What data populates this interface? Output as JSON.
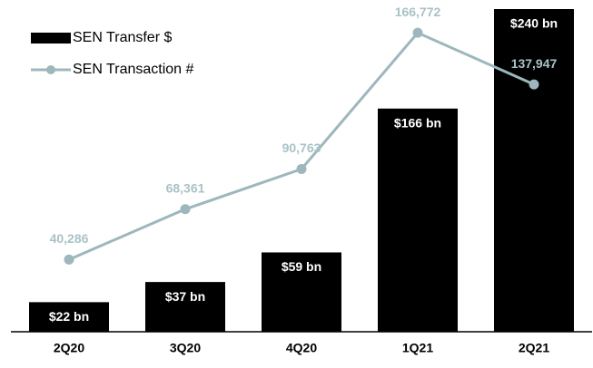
{
  "chart_data": {
    "type": "bar",
    "categories": [
      "2Q20",
      "3Q20",
      "4Q20",
      "1Q21",
      "2Q21"
    ],
    "series": [
      {
        "name": "SEN Transfer $",
        "type": "bar",
        "color": "#000000",
        "label_color": "#ffffff",
        "values": [
          22,
          37,
          59,
          166,
          240
        ],
        "value_labels": [
          "$22 bn",
          "$37 bn",
          "$59 bn",
          "$166 bn",
          "$240 bn"
        ]
      },
      {
        "name": "SEN Transaction #",
        "type": "line",
        "axis": "y2",
        "color": "#9db7bc",
        "label_color": "#a9c2c6",
        "values": [
          40286,
          68361,
          90763,
          166772,
          137947
        ],
        "value_labels": [
          "40,286",
          "68,361",
          "90,763",
          "166,772",
          "137,947"
        ]
      }
    ],
    "ylim": [
      0,
      240
    ],
    "y2lim": [
      0,
      180000
    ],
    "legend": "top-left"
  }
}
